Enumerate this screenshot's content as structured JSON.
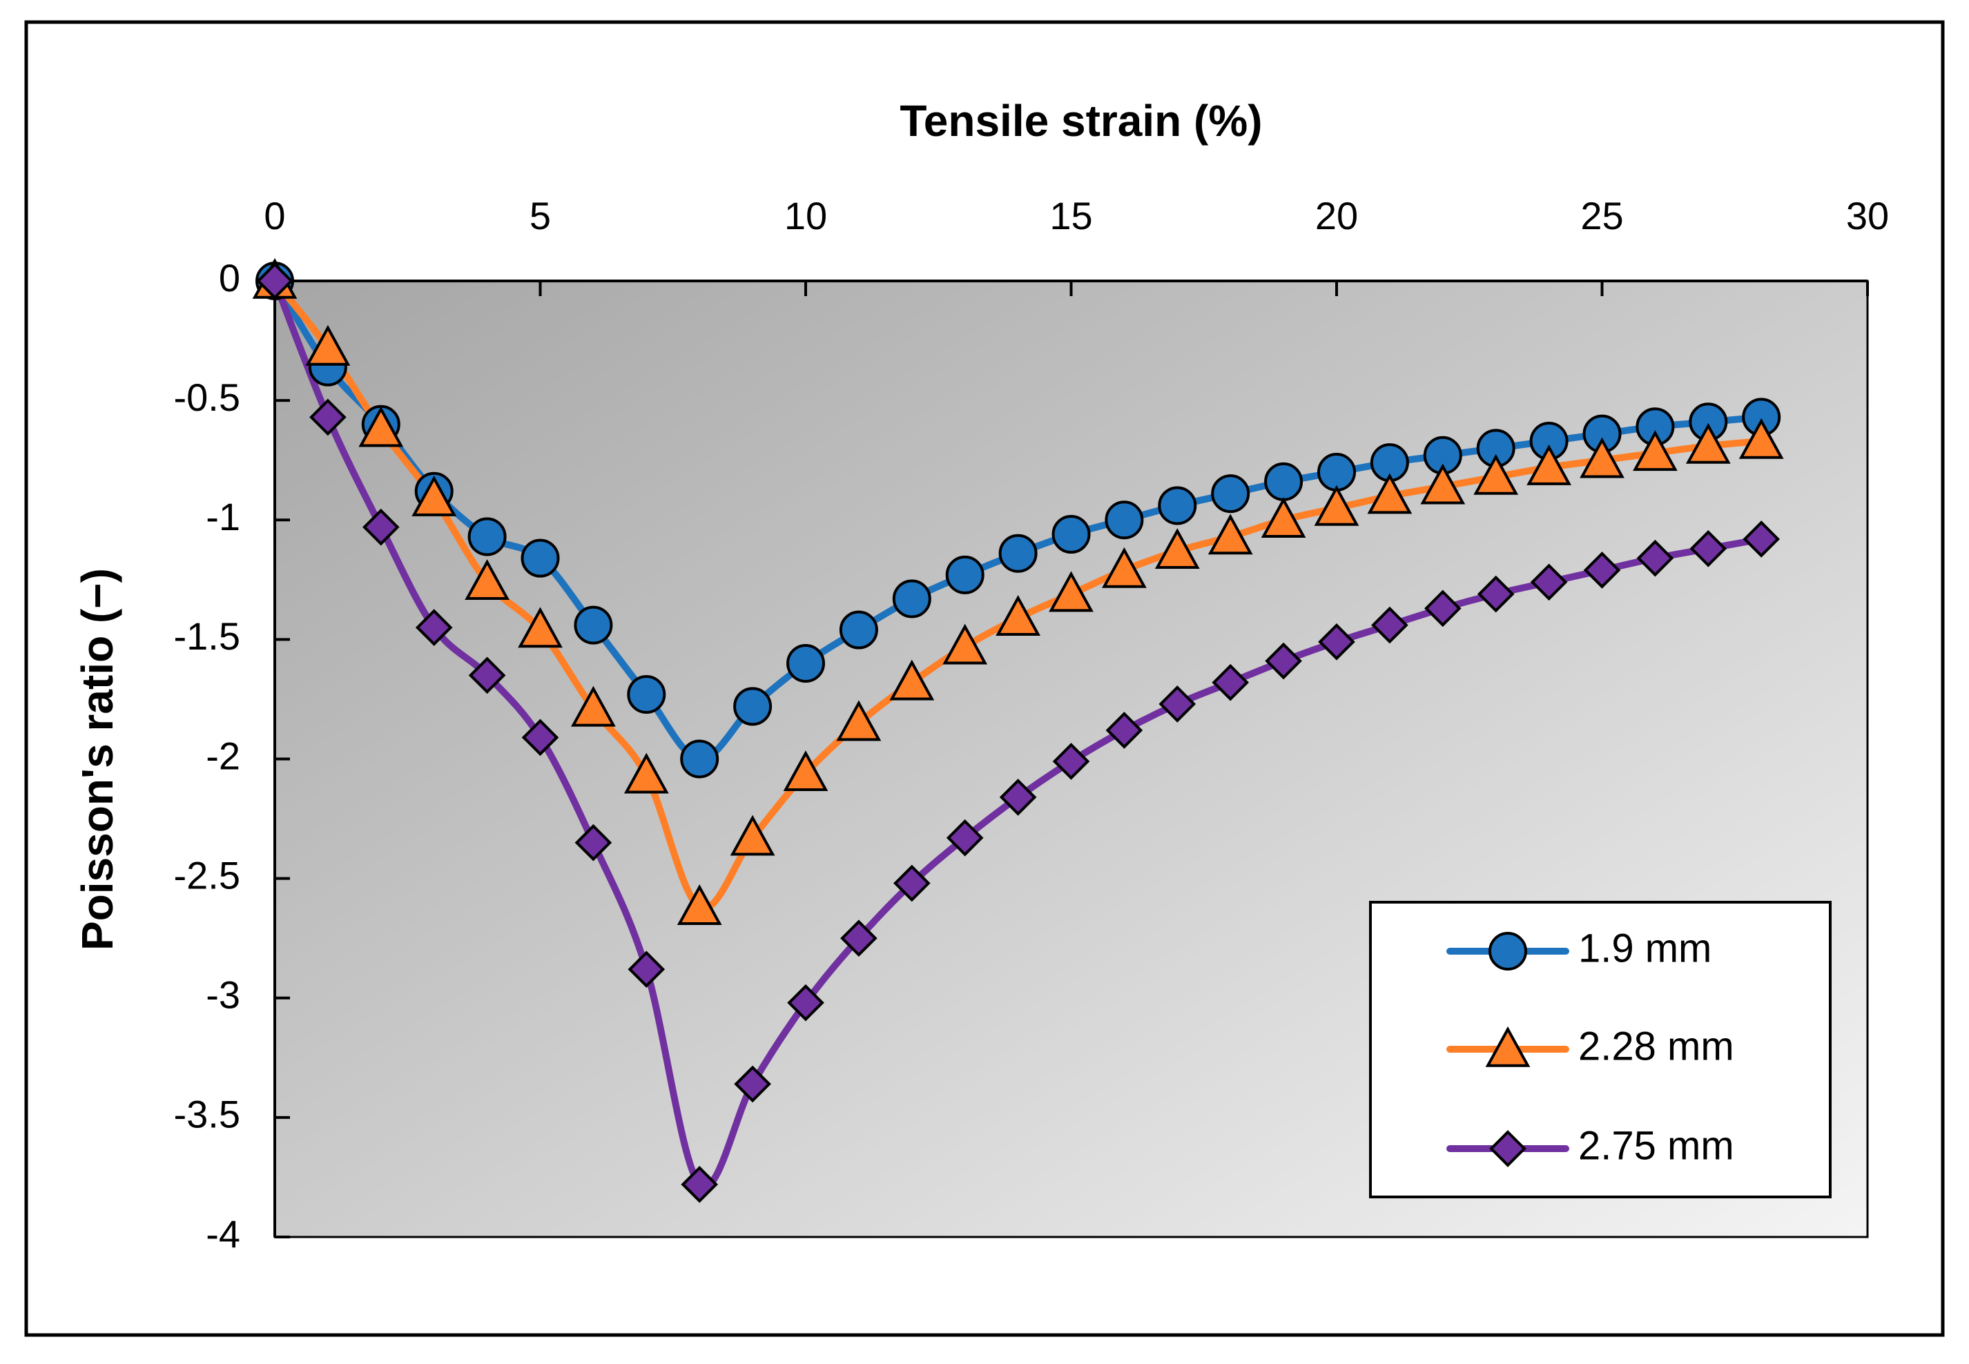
{
  "chart_data": {
    "type": "line",
    "xlabel": "Tensile strain (%)",
    "ylabel": "Poisson's ratio (−)",
    "xlim": [
      0,
      30
    ],
    "ylim": [
      -4,
      0
    ],
    "x_ticks": [
      0,
      5,
      10,
      15,
      20,
      25,
      30
    ],
    "y_ticks": [
      0,
      -0.5,
      -1,
      -1.5,
      -2,
      -2.5,
      -3,
      -3.5,
      -4
    ],
    "x_tick_labels": [
      "0",
      "5",
      "10",
      "15",
      "20",
      "25",
      "30"
    ],
    "y_tick_labels": [
      "0",
      "-0.5",
      "-1",
      "-1.5",
      "-2",
      "-2.5",
      "-3",
      "-3.5",
      "-4"
    ],
    "x_axis_position": "top",
    "y_axis_direction": "downward-negative",
    "grid": false,
    "legend_position": "bottom-right",
    "background": "gradient-gray",
    "x": [
      0,
      1,
      2,
      3,
      4,
      5,
      6,
      7,
      8,
      9,
      10,
      11,
      12,
      13,
      14,
      15,
      16,
      17,
      18,
      19,
      20,
      21,
      22,
      23,
      24,
      25,
      26,
      27,
      28
    ],
    "series": [
      {
        "name": "1.9 mm",
        "marker": "circle",
        "color": "#1e73be",
        "values": [
          0,
          -0.36,
          -0.6,
          -0.88,
          -1.07,
          -1.16,
          -1.44,
          -1.73,
          -2.0,
          -1.78,
          -1.6,
          -1.46,
          -1.33,
          -1.23,
          -1.14,
          -1.06,
          -1.0,
          -0.94,
          -0.89,
          -0.84,
          -0.8,
          -0.76,
          -0.73,
          -0.7,
          -0.67,
          -0.64,
          -0.61,
          -0.59,
          -0.57
        ]
      },
      {
        "name": "2.28 mm",
        "marker": "triangle",
        "color": "#ff7f27",
        "values": [
          0,
          -0.28,
          -0.62,
          -0.91,
          -1.26,
          -1.46,
          -1.79,
          -2.07,
          -2.62,
          -2.33,
          -2.06,
          -1.85,
          -1.68,
          -1.53,
          -1.41,
          -1.31,
          -1.21,
          -1.13,
          -1.07,
          -1.0,
          -0.95,
          -0.9,
          -0.86,
          -0.82,
          -0.78,
          -0.75,
          -0.72,
          -0.69,
          -0.67
        ]
      },
      {
        "name": "2.75 mm",
        "marker": "diamond",
        "color": "#7030a0",
        "values": [
          0,
          -0.57,
          -1.03,
          -1.45,
          -1.65,
          -1.91,
          -2.35,
          -2.88,
          -3.78,
          -3.36,
          -3.02,
          -2.75,
          -2.52,
          -2.33,
          -2.16,
          -2.01,
          -1.88,
          -1.77,
          -1.68,
          -1.59,
          -1.51,
          -1.44,
          -1.37,
          -1.31,
          -1.26,
          -1.21,
          -1.16,
          -1.12,
          -1.08
        ]
      }
    ]
  }
}
